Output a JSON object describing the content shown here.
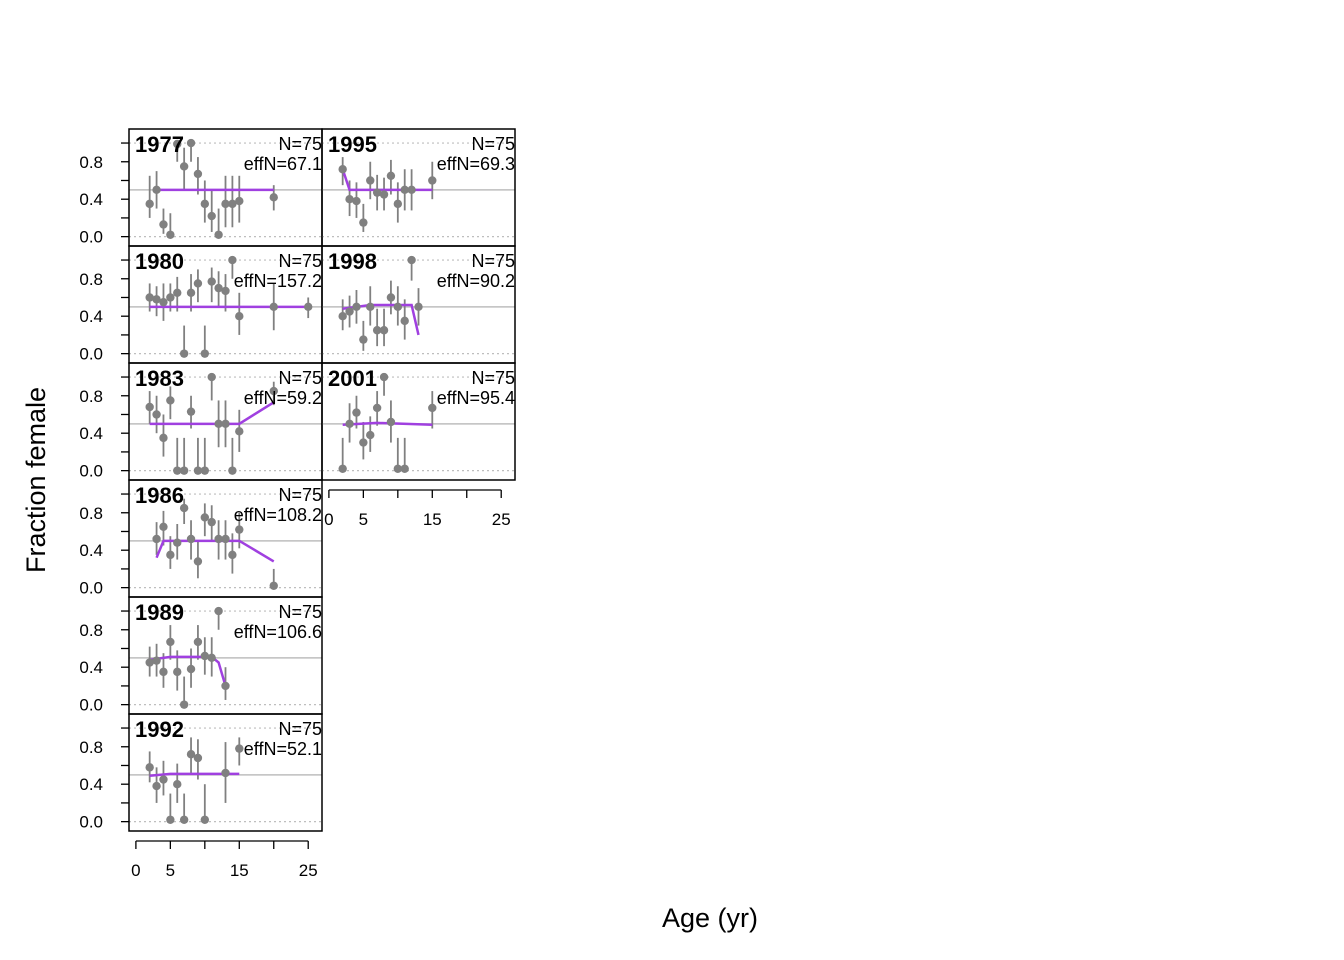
{
  "axes": {
    "xlabel": "Age (yr)",
    "ylabel": "Fraction female",
    "x_ticks": [
      0,
      5,
      15,
      25
    ],
    "y_ticks": [
      "0.0",
      "0.4",
      "0.8"
    ],
    "xlim": [
      -1,
      27
    ],
    "ylim": [
      -0.1,
      1.15
    ]
  },
  "colors": {
    "observed": "#808080",
    "expected": "#A040E0",
    "reference_line": "#BEBEBE",
    "grid_dotted": "#BEBEBE",
    "frame": "#000000"
  },
  "chart_data": {
    "type": "scatter",
    "description_free": true,
    "panels": [
      {
        "year": "1977",
        "n_label": "N=75",
        "effn_label": "effN=67.1",
        "observed": [
          [
            2,
            0.35
          ],
          [
            3,
            0.5
          ],
          [
            4,
            0.13
          ],
          [
            5,
            0.02
          ],
          [
            6,
            0.99
          ],
          [
            7,
            0.75
          ],
          [
            8,
            1.0
          ],
          [
            9,
            0.67
          ],
          [
            10,
            0.35
          ],
          [
            11,
            0.22
          ],
          [
            12,
            0.02
          ],
          [
            13,
            0.35
          ],
          [
            14,
            0.35
          ],
          [
            15,
            0.38
          ],
          [
            20,
            0.42
          ]
        ],
        "ci": [
          [
            2,
            0.2,
            0.65
          ],
          [
            3,
            0.3,
            0.7
          ],
          [
            4,
            0.03,
            0.3
          ],
          [
            5,
            0.0,
            0.25
          ],
          [
            6,
            0.8,
            1.0
          ],
          [
            7,
            0.5,
            0.95
          ],
          [
            8,
            0.8,
            1.0
          ],
          [
            9,
            0.45,
            0.85
          ],
          [
            10,
            0.15,
            0.6
          ],
          [
            11,
            0.05,
            0.5
          ],
          [
            12,
            0.0,
            0.3
          ],
          [
            13,
            0.1,
            0.65
          ],
          [
            14,
            0.1,
            0.65
          ],
          [
            15,
            0.15,
            0.65
          ],
          [
            20,
            0.28,
            0.55
          ]
        ],
        "expected": [
          [
            3,
            0.5
          ],
          [
            15,
            0.5
          ],
          [
            20,
            0.5
          ]
        ]
      },
      {
        "year": "1980",
        "n_label": "N=75",
        "effn_label": "effN=157.2",
        "observed": [
          [
            2,
            0.6
          ],
          [
            3,
            0.58
          ],
          [
            4,
            0.55
          ],
          [
            5,
            0.6
          ],
          [
            6,
            0.65
          ],
          [
            7,
            0.0
          ],
          [
            8,
            0.65
          ],
          [
            9,
            0.75
          ],
          [
            10,
            0.0
          ],
          [
            11,
            0.77
          ],
          [
            12,
            0.7
          ],
          [
            13,
            0.67
          ],
          [
            14,
            1.0
          ],
          [
            15,
            0.4
          ],
          [
            20,
            0.5
          ],
          [
            25,
            0.5
          ]
        ],
        "ci": [
          [
            2,
            0.45,
            0.75
          ],
          [
            3,
            0.4,
            0.72
          ],
          [
            4,
            0.35,
            0.75
          ],
          [
            5,
            0.45,
            0.75
          ],
          [
            6,
            0.45,
            0.82
          ],
          [
            7,
            0.0,
            0.3
          ],
          [
            8,
            0.45,
            0.85
          ],
          [
            9,
            0.55,
            0.9
          ],
          [
            10,
            0.0,
            0.3
          ],
          [
            11,
            0.55,
            0.92
          ],
          [
            12,
            0.5,
            0.88
          ],
          [
            13,
            0.45,
            0.85
          ],
          [
            14,
            0.8,
            1.0
          ],
          [
            15,
            0.2,
            0.65
          ],
          [
            20,
            0.25,
            0.75
          ],
          [
            25,
            0.38,
            0.6
          ]
        ],
        "expected": [
          [
            2,
            0.5
          ],
          [
            25,
            0.5
          ]
        ]
      },
      {
        "year": "1983",
        "n_label": "N=75",
        "effn_label": "effN=59.2",
        "observed": [
          [
            2,
            0.68
          ],
          [
            3,
            0.6
          ],
          [
            4,
            0.35
          ],
          [
            5,
            0.75
          ],
          [
            6,
            0.0
          ],
          [
            7,
            0.0
          ],
          [
            8,
            0.63
          ],
          [
            9,
            0.0
          ],
          [
            10,
            0.0
          ],
          [
            11,
            1.0
          ],
          [
            12,
            0.5
          ],
          [
            13,
            0.5
          ],
          [
            14,
            0.0
          ],
          [
            15,
            0.42
          ],
          [
            20,
            0.85
          ]
        ],
        "ci": [
          [
            2,
            0.5,
            0.85
          ],
          [
            3,
            0.4,
            0.8
          ],
          [
            4,
            0.15,
            0.6
          ],
          [
            5,
            0.55,
            0.9
          ],
          [
            6,
            0.0,
            0.35
          ],
          [
            7,
            0.0,
            0.35
          ],
          [
            8,
            0.45,
            0.8
          ],
          [
            9,
            0.0,
            0.35
          ],
          [
            10,
            0.0,
            0.35
          ],
          [
            11,
            0.75,
            1.0
          ],
          [
            12,
            0.25,
            0.75
          ],
          [
            13,
            0.25,
            0.75
          ],
          [
            14,
            0.0,
            0.35
          ],
          [
            15,
            0.2,
            0.65
          ],
          [
            20,
            0.7,
            0.95
          ]
        ],
        "expected": [
          [
            2,
            0.5
          ],
          [
            15,
            0.5
          ],
          [
            20,
            0.73
          ]
        ]
      },
      {
        "year": "1986",
        "n_label": "N=75",
        "effn_label": "effN=108.2",
        "observed": [
          [
            3,
            0.52
          ],
          [
            4,
            0.65
          ],
          [
            5,
            0.35
          ],
          [
            6,
            0.48
          ],
          [
            7,
            0.85
          ],
          [
            8,
            0.52
          ],
          [
            9,
            0.28
          ],
          [
            10,
            0.75
          ],
          [
            11,
            0.7
          ],
          [
            12,
            0.52
          ],
          [
            13,
            0.52
          ],
          [
            14,
            0.35
          ],
          [
            15,
            0.62
          ],
          [
            20,
            0.02
          ]
        ],
        "ci": [
          [
            3,
            0.35,
            0.7
          ],
          [
            4,
            0.45,
            0.82
          ],
          [
            5,
            0.2,
            0.55
          ],
          [
            6,
            0.3,
            0.68
          ],
          [
            7,
            0.68,
            0.95
          ],
          [
            8,
            0.3,
            0.72
          ],
          [
            9,
            0.1,
            0.5
          ],
          [
            10,
            0.55,
            0.9
          ],
          [
            11,
            0.5,
            0.88
          ],
          [
            12,
            0.3,
            0.72
          ],
          [
            13,
            0.3,
            0.72
          ],
          [
            14,
            0.15,
            0.58
          ],
          [
            15,
            0.42,
            0.8
          ],
          [
            20,
            0.0,
            0.2
          ]
        ],
        "expected": [
          [
            3,
            0.32
          ],
          [
            4,
            0.5
          ],
          [
            15,
            0.5
          ],
          [
            20,
            0.28
          ]
        ]
      },
      {
        "year": "1989",
        "n_label": "N=75",
        "effn_label": "effN=106.6",
        "observed": [
          [
            2,
            0.45
          ],
          [
            3,
            0.47
          ],
          [
            4,
            0.35
          ],
          [
            5,
            0.67
          ],
          [
            6,
            0.35
          ],
          [
            7,
            0.0
          ],
          [
            8,
            0.38
          ],
          [
            9,
            0.67
          ],
          [
            10,
            0.52
          ],
          [
            11,
            0.5
          ],
          [
            12,
            1.0
          ],
          [
            13,
            0.2
          ]
        ],
        "ci": [
          [
            2,
            0.3,
            0.62
          ],
          [
            3,
            0.3,
            0.65
          ],
          [
            4,
            0.18,
            0.55
          ],
          [
            5,
            0.48,
            0.85
          ],
          [
            6,
            0.15,
            0.58
          ],
          [
            7,
            0.0,
            0.3
          ],
          [
            8,
            0.18,
            0.6
          ],
          [
            9,
            0.48,
            0.85
          ],
          [
            10,
            0.32,
            0.72
          ],
          [
            11,
            0.3,
            0.72
          ],
          [
            12,
            0.8,
            1.0
          ],
          [
            13,
            0.05,
            0.4
          ]
        ],
        "expected": [
          [
            2,
            0.48
          ],
          [
            5,
            0.51
          ],
          [
            11,
            0.51
          ],
          [
            12,
            0.45
          ],
          [
            13,
            0.2
          ]
        ]
      },
      {
        "year": "1992",
        "n_label": "N=75",
        "effn_label": "effN=52.1",
        "observed": [
          [
            2,
            0.58
          ],
          [
            3,
            0.38
          ],
          [
            4,
            0.45
          ],
          [
            5,
            0.02
          ],
          [
            6,
            0.4
          ],
          [
            7,
            0.02
          ],
          [
            8,
            0.72
          ],
          [
            9,
            0.68
          ],
          [
            10,
            0.02
          ],
          [
            13,
            0.52
          ],
          [
            15,
            0.78
          ]
        ],
        "ci": [
          [
            2,
            0.42,
            0.75
          ],
          [
            3,
            0.2,
            0.58
          ],
          [
            4,
            0.28,
            0.65
          ],
          [
            5,
            0.0,
            0.3
          ],
          [
            6,
            0.2,
            0.62
          ],
          [
            7,
            0.0,
            0.3
          ],
          [
            8,
            0.52,
            0.9
          ],
          [
            9,
            0.45,
            0.88
          ],
          [
            10,
            0.0,
            0.4
          ],
          [
            13,
            0.2,
            0.85
          ],
          [
            15,
            0.6,
            0.9
          ]
        ],
        "expected": [
          [
            2,
            0.49
          ],
          [
            5,
            0.51
          ],
          [
            15,
            0.51
          ]
        ]
      },
      {
        "year": "1995",
        "n_label": "N=75",
        "effn_label": "effN=69.3",
        "observed": [
          [
            2,
            0.72
          ],
          [
            3,
            0.4
          ],
          [
            4,
            0.38
          ],
          [
            5,
            0.15
          ],
          [
            6,
            0.6
          ],
          [
            7,
            0.47
          ],
          [
            8,
            0.45
          ],
          [
            9,
            0.65
          ],
          [
            10,
            0.35
          ],
          [
            11,
            0.5
          ],
          [
            12,
            0.5
          ],
          [
            15,
            0.6
          ]
        ],
        "ci": [
          [
            2,
            0.55,
            0.85
          ],
          [
            3,
            0.22,
            0.6
          ],
          [
            4,
            0.2,
            0.58
          ],
          [
            5,
            0.05,
            0.35
          ],
          [
            6,
            0.4,
            0.8
          ],
          [
            7,
            0.28,
            0.66
          ],
          [
            8,
            0.28,
            0.63
          ],
          [
            9,
            0.45,
            0.82
          ],
          [
            10,
            0.15,
            0.58
          ],
          [
            11,
            0.28,
            0.72
          ],
          [
            12,
            0.28,
            0.72
          ],
          [
            15,
            0.4,
            0.8
          ]
        ],
        "expected": [
          [
            2,
            0.72
          ],
          [
            3,
            0.5
          ],
          [
            15,
            0.5
          ]
        ]
      },
      {
        "year": "1998",
        "n_label": "N=75",
        "effn_label": "effN=90.2",
        "observed": [
          [
            2,
            0.4
          ],
          [
            3,
            0.45
          ],
          [
            4,
            0.5
          ],
          [
            5,
            0.15
          ],
          [
            6,
            0.5
          ],
          [
            7,
            0.25
          ],
          [
            8,
            0.25
          ],
          [
            9,
            0.6
          ],
          [
            10,
            0.5
          ],
          [
            11,
            0.35
          ],
          [
            12,
            1.0
          ],
          [
            13,
            0.5
          ]
        ],
        "ci": [
          [
            2,
            0.25,
            0.58
          ],
          [
            3,
            0.28,
            0.62
          ],
          [
            4,
            0.32,
            0.68
          ],
          [
            5,
            0.03,
            0.35
          ],
          [
            6,
            0.3,
            0.72
          ],
          [
            7,
            0.08,
            0.48
          ],
          [
            8,
            0.08,
            0.48
          ],
          [
            9,
            0.42,
            0.78
          ],
          [
            10,
            0.3,
            0.72
          ],
          [
            11,
            0.15,
            0.58
          ],
          [
            12,
            0.78,
            1.0
          ],
          [
            13,
            0.3,
            0.7
          ]
        ],
        "expected": [
          [
            2,
            0.48
          ],
          [
            6,
            0.52
          ],
          [
            12,
            0.52
          ],
          [
            13,
            0.2
          ]
        ]
      },
      {
        "year": "2001",
        "n_label": "N=75",
        "effn_label": "effN=95.4",
        "observed": [
          [
            2,
            0.02
          ],
          [
            3,
            0.5
          ],
          [
            4,
            0.62
          ],
          [
            5,
            0.3
          ],
          [
            6,
            0.38
          ],
          [
            7,
            0.67
          ],
          [
            8,
            1.0
          ],
          [
            9,
            0.52
          ],
          [
            10,
            0.02
          ],
          [
            11,
            0.02
          ],
          [
            15,
            0.67
          ]
        ],
        "ci": [
          [
            2,
            0.0,
            0.35
          ],
          [
            3,
            0.3,
            0.72
          ],
          [
            4,
            0.45,
            0.8
          ],
          [
            5,
            0.12,
            0.52
          ],
          [
            6,
            0.2,
            0.58
          ],
          [
            7,
            0.48,
            0.85
          ],
          [
            8,
            0.8,
            1.0
          ],
          [
            9,
            0.3,
            0.75
          ],
          [
            10,
            0.0,
            0.35
          ],
          [
            11,
            0.0,
            0.35
          ],
          [
            15,
            0.45,
            0.85
          ]
        ],
        "expected": [
          [
            2,
            0.49
          ],
          [
            7,
            0.51
          ],
          [
            15,
            0.49
          ]
        ]
      }
    ]
  }
}
